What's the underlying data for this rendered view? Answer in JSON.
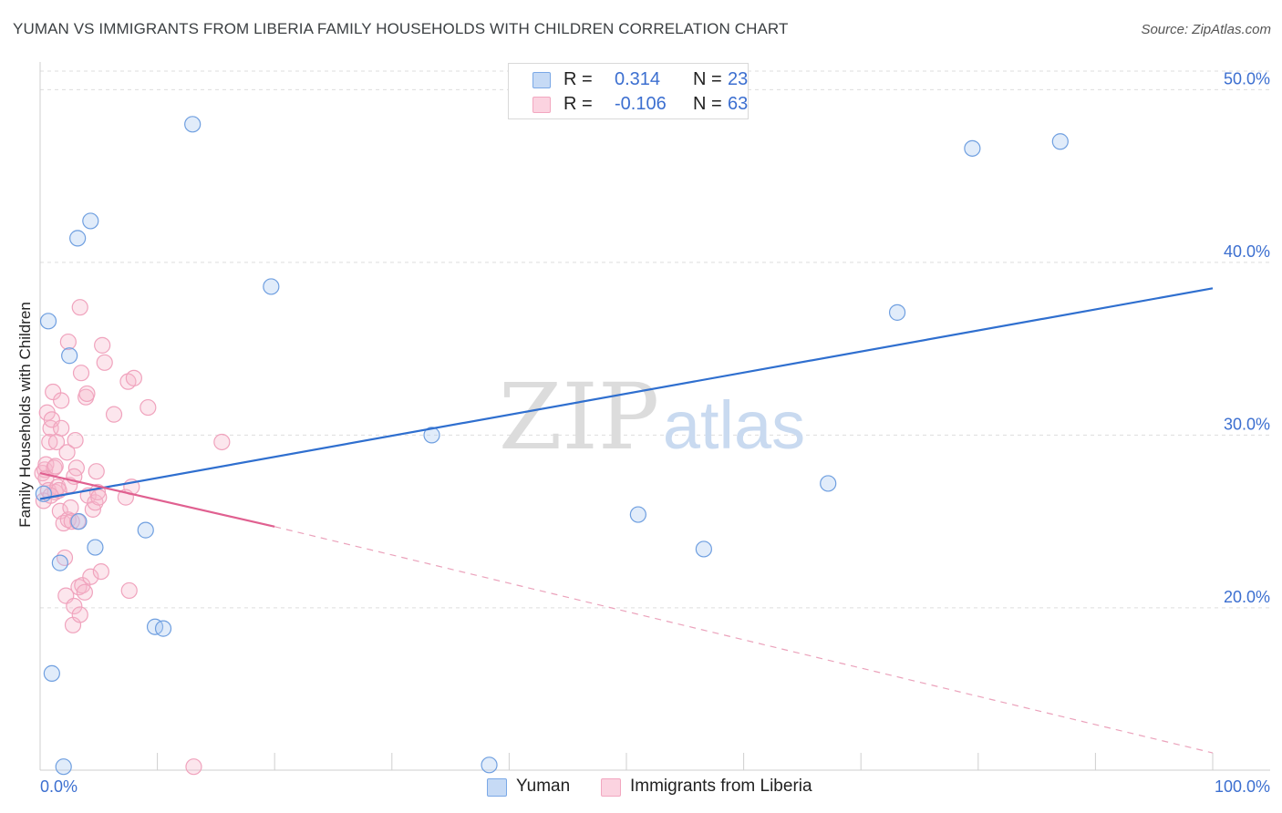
{
  "header": {
    "title": "YUMAN VS IMMIGRANTS FROM LIBERIA FAMILY HOUSEHOLDS WITH CHILDREN CORRELATION CHART",
    "source": "Source: ZipAtlas.com"
  },
  "legend": {
    "r_label": "R =",
    "n_label": "N =",
    "series": [
      {
        "r": "0.314",
        "n": "23"
      },
      {
        "r": "-0.106",
        "n": "63"
      }
    ]
  },
  "bottom_legend": [
    "Yuman",
    "Immigrants from Liberia"
  ],
  "watermark": {
    "zip": "ZIP",
    "atlas": "atlas"
  },
  "chart_data": {
    "type": "scatter",
    "title": "YUMAN VS IMMIGRANTS FROM LIBERIA FAMILY HOUSEHOLDS WITH CHILDREN CORRELATION CHART",
    "xlabel": "",
    "ylabel": "Family Households with Children",
    "xlim": [
      0,
      100
    ],
    "ylim": [
      10.6,
      51.5
    ],
    "x_tick_labels": [
      "0.0%",
      "100.0%"
    ],
    "y_ticks": [
      20,
      30,
      40,
      50
    ],
    "y_tick_labels": [
      "20.0%",
      "30.0%",
      "40.0%",
      "50.0%"
    ],
    "grid": true,
    "colors": {
      "yuman": "#7aa8e6",
      "liberia": "#f2a7c0",
      "yuman_line": "#2f6fcf",
      "liberia_line": "#e06090"
    },
    "series": [
      {
        "name": "Yuman",
        "points": [
          [
            0.3,
            26.6
          ],
          [
            0.7,
            36.6
          ],
          [
            1.0,
            16.2
          ],
          [
            1.7,
            22.6
          ],
          [
            2.0,
            10.8
          ],
          [
            2.5,
            34.6
          ],
          [
            3.2,
            41.4
          ],
          [
            3.3,
            25.0
          ],
          [
            4.3,
            42.4
          ],
          [
            4.7,
            23.5
          ],
          [
            9.0,
            24.5
          ],
          [
            9.8,
            18.9
          ],
          [
            10.5,
            18.8
          ],
          [
            13.0,
            48.0
          ],
          [
            19.7,
            38.6
          ],
          [
            33.4,
            30.0
          ],
          [
            38.3,
            10.9
          ],
          [
            51.0,
            25.4
          ],
          [
            56.6,
            23.4
          ],
          [
            67.2,
            27.2
          ],
          [
            73.1,
            37.1
          ],
          [
            79.5,
            46.6
          ],
          [
            87.0,
            47.0
          ]
        ],
        "trend": {
          "x": [
            0,
            100
          ],
          "y": [
            26.3,
            38.5
          ],
          "style": "solid"
        }
      },
      {
        "name": "Immigrants from Liberia",
        "points": [
          [
            0.2,
            27.8
          ],
          [
            0.3,
            26.2
          ],
          [
            0.4,
            28.0
          ],
          [
            0.5,
            27.5
          ],
          [
            0.5,
            28.3
          ],
          [
            0.6,
            31.3
          ],
          [
            0.7,
            26.8
          ],
          [
            0.8,
            29.6
          ],
          [
            0.9,
            30.4
          ],
          [
            1.0,
            30.9
          ],
          [
            1.1,
            32.5
          ],
          [
            1.2,
            28.1
          ],
          [
            1.3,
            26.7
          ],
          [
            1.4,
            29.6
          ],
          [
            1.5,
            27.0
          ],
          [
            1.7,
            25.6
          ],
          [
            1.8,
            30.4
          ],
          [
            1.8,
            32.0
          ],
          [
            2.0,
            24.9
          ],
          [
            2.1,
            22.9
          ],
          [
            2.2,
            20.7
          ],
          [
            2.3,
            29.0
          ],
          [
            2.4,
            25.1
          ],
          [
            2.5,
            27.1
          ],
          [
            2.6,
            25.8
          ],
          [
            2.7,
            25.0
          ],
          [
            2.8,
            19.0
          ],
          [
            2.9,
            20.1
          ],
          [
            3.0,
            29.7
          ],
          [
            3.1,
            28.1
          ],
          [
            3.2,
            25.0
          ],
          [
            3.3,
            21.2
          ],
          [
            3.4,
            19.6
          ],
          [
            3.4,
            37.4
          ],
          [
            3.5,
            33.6
          ],
          [
            3.6,
            21.3
          ],
          [
            3.8,
            20.9
          ],
          [
            3.9,
            32.2
          ],
          [
            4.0,
            32.4
          ],
          [
            4.1,
            26.5
          ],
          [
            4.3,
            21.8
          ],
          [
            4.5,
            25.7
          ],
          [
            4.7,
            26.1
          ],
          [
            4.8,
            27.9
          ],
          [
            4.9,
            26.7
          ],
          [
            5.0,
            26.4
          ],
          [
            5.2,
            22.1
          ],
          [
            5.3,
            35.2
          ],
          [
            5.5,
            34.2
          ],
          [
            6.3,
            31.2
          ],
          [
            7.3,
            26.4
          ],
          [
            7.5,
            33.1
          ],
          [
            7.6,
            21.0
          ],
          [
            7.8,
            27.0
          ],
          [
            8.0,
            33.3
          ],
          [
            9.2,
            31.6
          ],
          [
            2.4,
            35.4
          ],
          [
            1.6,
            26.8
          ],
          [
            13.1,
            10.8
          ],
          [
            15.5,
            29.6
          ],
          [
            1.3,
            28.2
          ],
          [
            0.9,
            26.5
          ],
          [
            2.9,
            27.6
          ]
        ],
        "trend": {
          "x": [
            0,
            20
          ],
          "y": [
            27.8,
            24.7
          ],
          "style": "solid"
        },
        "trend_extension": {
          "x": [
            20,
            100
          ],
          "y": [
            24.7,
            11.6
          ],
          "style": "dashed"
        }
      }
    ]
  }
}
